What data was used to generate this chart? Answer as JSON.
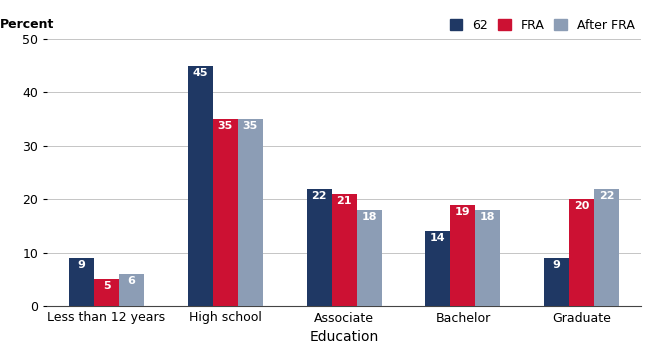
{
  "cat_labels": [
    "Less than 12 years",
    "High school",
    "Associate",
    "Bachelor",
    "Graduate"
  ],
  "series": {
    "62": [
      9,
      45,
      22,
      14,
      9
    ],
    "FRA": [
      5,
      35,
      21,
      19,
      20
    ],
    "After FRA": [
      6,
      35,
      18,
      18,
      22
    ]
  },
  "colors": {
    "62": "#1f3864",
    "FRA": "#cc1133",
    "After FRA": "#8c9db5"
  },
  "legend_labels": [
    "62",
    "FRA",
    "After FRA"
  ],
  "percent_label": "Percent",
  "xlabel": "Education",
  "ylim": [
    0,
    50
  ],
  "yticks": [
    0,
    10,
    20,
    30,
    40,
    50
  ],
  "bar_width": 0.21,
  "label_fontsize": 8,
  "tick_fontsize": 9,
  "legend_fontsize": 9,
  "background_color": "#ffffff",
  "grid_color": "#bbbbbb"
}
